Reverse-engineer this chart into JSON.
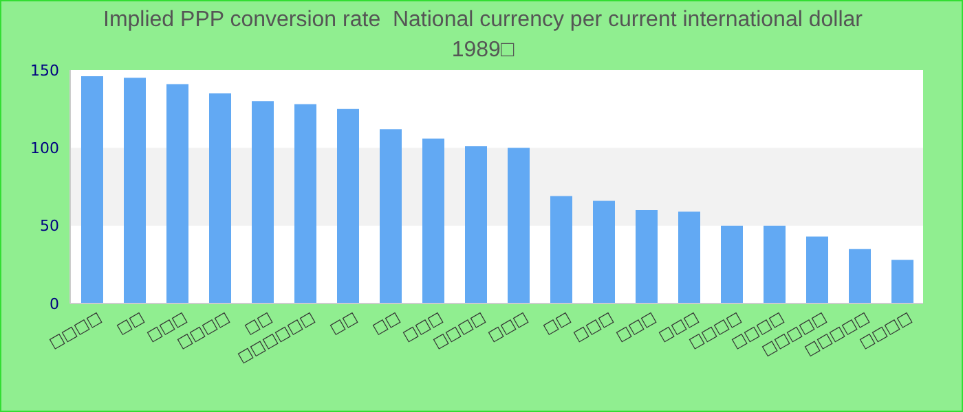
{
  "chart_data": {
    "type": "bar",
    "title": "Implied PPP conversion rate  National currency per current international dollar",
    "subtitle": "1989□",
    "categories": [
      "□□□□",
      "□□",
      "□□□",
      "□□□□",
      "□□",
      "□□□□□□",
      "□□",
      "□□",
      "□□□",
      "□□□□",
      "□□□",
      "□□",
      "□□□",
      "□□□",
      "□□□",
      "□□□□",
      "□□□□",
      "□□□□□",
      "□□□□□",
      "□□□□"
    ],
    "values": [
      146,
      145,
      141,
      135,
      130,
      128,
      125,
      112,
      106,
      101,
      100,
      69,
      66,
      60,
      59,
      50,
      50,
      43,
      35,
      28
    ],
    "color": "#62a9f3",
    "ylim": [
      0,
      150
    ],
    "yticks": [
      0,
      50,
      100,
      150
    ],
    "bands": [
      {
        "axis": "y",
        "from": 50,
        "to": 100,
        "color": "#f2f2f2"
      }
    ]
  }
}
